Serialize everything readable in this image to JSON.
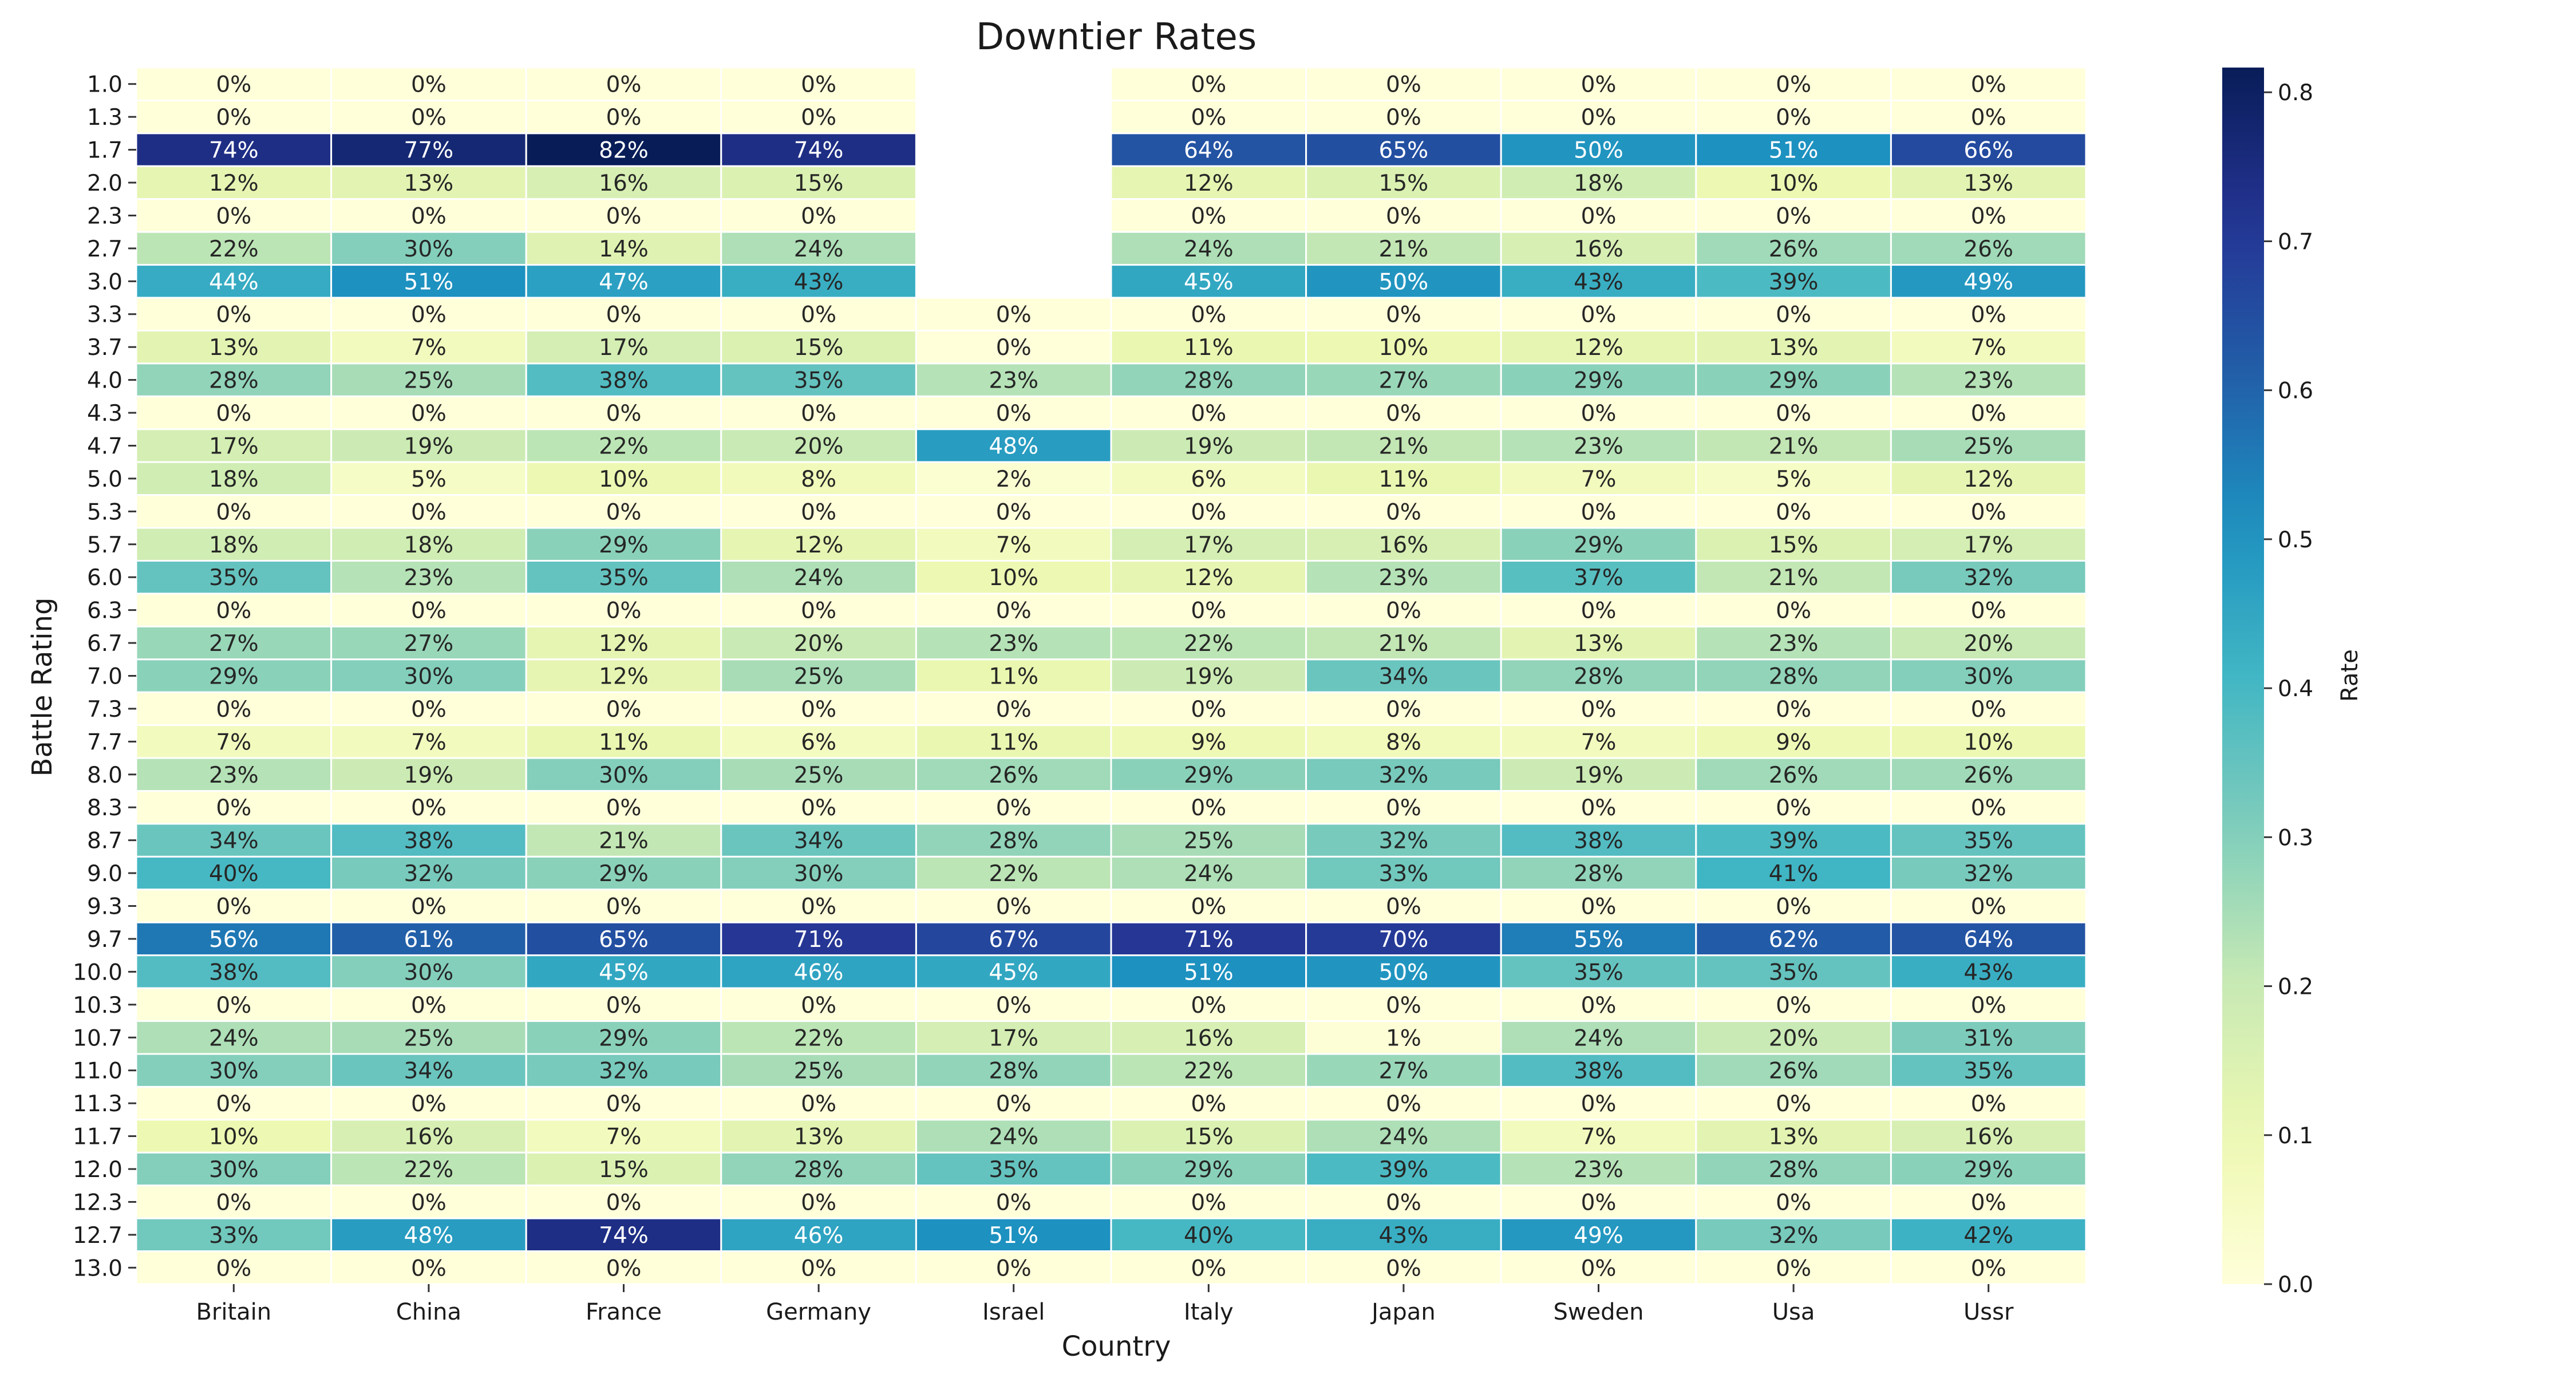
{
  "chart_data": {
    "type": "heatmap",
    "title": "Downtier Rates",
    "xlabel": "Country",
    "ylabel": "Battle Rating",
    "colorbar_label": "Rate",
    "colorbar_ticks": [
      "0.0",
      "0.1",
      "0.2",
      "0.3",
      "0.4",
      "0.5",
      "0.6",
      "0.7",
      "0.8"
    ],
    "vmin": 0.0,
    "vmax": 0.8166,
    "colormap": "YlGnBu",
    "categories_x": [
      "Britain",
      "China",
      "France",
      "Germany",
      "Israel",
      "Italy",
      "Japan",
      "Sweden",
      "Usa",
      "Ussr"
    ],
    "categories_y": [
      "1.0",
      "1.3",
      "1.7",
      "2.0",
      "2.3",
      "2.7",
      "3.0",
      "3.3",
      "3.7",
      "4.0",
      "4.3",
      "4.7",
      "5.0",
      "5.3",
      "5.7",
      "6.0",
      "6.3",
      "6.7",
      "7.0",
      "7.3",
      "7.7",
      "8.0",
      "8.3",
      "8.7",
      "9.0",
      "9.3",
      "9.7",
      "10.0",
      "10.3",
      "10.7",
      "11.0",
      "11.3",
      "11.7",
      "12.0",
      "12.3",
      "12.7",
      "13.0"
    ],
    "values": [
      [
        0.0,
        0.0,
        0.0,
        0.0,
        null,
        0.0,
        0.0,
        0.0,
        0.0,
        0.0
      ],
      [
        0.0,
        0.0,
        0.0,
        0.0,
        null,
        0.0,
        0.0,
        0.0,
        0.0,
        0.0
      ],
      [
        0.74,
        0.77,
        0.82,
        0.74,
        null,
        0.64,
        0.65,
        0.5,
        0.51,
        0.66
      ],
      [
        0.12,
        0.13,
        0.16,
        0.15,
        null,
        0.12,
        0.15,
        0.18,
        0.1,
        0.13
      ],
      [
        0.0,
        0.0,
        0.0,
        0.0,
        null,
        0.0,
        0.0,
        0.0,
        0.0,
        0.0
      ],
      [
        0.22,
        0.3,
        0.14,
        0.24,
        null,
        0.24,
        0.21,
        0.16,
        0.26,
        0.26
      ],
      [
        0.44,
        0.51,
        0.47,
        0.43,
        null,
        0.45,
        0.5,
        0.43,
        0.39,
        0.49
      ],
      [
        0.0,
        0.0,
        0.0,
        0.0,
        0.0,
        0.0,
        0.0,
        0.0,
        0.0,
        0.0
      ],
      [
        0.13,
        0.07,
        0.17,
        0.15,
        0.0,
        0.11,
        0.1,
        0.12,
        0.13,
        0.07
      ],
      [
        0.28,
        0.25,
        0.38,
        0.35,
        0.23,
        0.28,
        0.27,
        0.29,
        0.29,
        0.23
      ],
      [
        0.0,
        0.0,
        0.0,
        0.0,
        0.0,
        0.0,
        0.0,
        0.0,
        0.0,
        0.0
      ],
      [
        0.17,
        0.19,
        0.22,
        0.2,
        0.48,
        0.19,
        0.21,
        0.23,
        0.21,
        0.25
      ],
      [
        0.18,
        0.05,
        0.1,
        0.08,
        0.02,
        0.06,
        0.11,
        0.07,
        0.05,
        0.12
      ],
      [
        0.0,
        0.0,
        0.0,
        0.0,
        0.0,
        0.0,
        0.0,
        0.0,
        0.0,
        0.0
      ],
      [
        0.18,
        0.18,
        0.29,
        0.12,
        0.07,
        0.17,
        0.16,
        0.29,
        0.15,
        0.17
      ],
      [
        0.35,
        0.23,
        0.35,
        0.24,
        0.1,
        0.12,
        0.23,
        0.37,
        0.21,
        0.32
      ],
      [
        0.0,
        0.0,
        0.0,
        0.0,
        0.0,
        0.0,
        0.0,
        0.0,
        0.0,
        0.0
      ],
      [
        0.27,
        0.27,
        0.12,
        0.2,
        0.23,
        0.22,
        0.21,
        0.13,
        0.23,
        0.2
      ],
      [
        0.29,
        0.3,
        0.12,
        0.25,
        0.11,
        0.19,
        0.34,
        0.28,
        0.28,
        0.3
      ],
      [
        0.0,
        0.0,
        0.0,
        0.0,
        0.0,
        0.0,
        0.0,
        0.0,
        0.0,
        0.0
      ],
      [
        0.07,
        0.07,
        0.11,
        0.06,
        0.11,
        0.09,
        0.08,
        0.07,
        0.09,
        0.1
      ],
      [
        0.23,
        0.19,
        0.3,
        0.25,
        0.26,
        0.29,
        0.32,
        0.19,
        0.26,
        0.26
      ],
      [
        0.0,
        0.0,
        0.0,
        0.0,
        0.0,
        0.0,
        0.0,
        0.0,
        0.0,
        0.0
      ],
      [
        0.34,
        0.38,
        0.21,
        0.34,
        0.28,
        0.25,
        0.32,
        0.38,
        0.39,
        0.35
      ],
      [
        0.4,
        0.32,
        0.29,
        0.3,
        0.22,
        0.24,
        0.33,
        0.28,
        0.41,
        0.32
      ],
      [
        0.0,
        0.0,
        0.0,
        0.0,
        0.0,
        0.0,
        0.0,
        0.0,
        0.0,
        0.0
      ],
      [
        0.56,
        0.61,
        0.65,
        0.71,
        0.67,
        0.71,
        0.7,
        0.55,
        0.62,
        0.64
      ],
      [
        0.38,
        0.3,
        0.45,
        0.46,
        0.45,
        0.51,
        0.5,
        0.35,
        0.35,
        0.43
      ],
      [
        0.0,
        0.0,
        0.0,
        0.0,
        0.0,
        0.0,
        0.0,
        0.0,
        0.0,
        0.0
      ],
      [
        0.24,
        0.25,
        0.29,
        0.22,
        0.17,
        0.16,
        0.01,
        0.24,
        0.2,
        0.31
      ],
      [
        0.3,
        0.34,
        0.32,
        0.25,
        0.28,
        0.22,
        0.27,
        0.38,
        0.26,
        0.35
      ],
      [
        0.0,
        0.0,
        0.0,
        0.0,
        0.0,
        0.0,
        0.0,
        0.0,
        0.0,
        0.0
      ],
      [
        0.1,
        0.16,
        0.07,
        0.13,
        0.24,
        0.15,
        0.24,
        0.07,
        0.13,
        0.16
      ],
      [
        0.3,
        0.22,
        0.15,
        0.28,
        0.35,
        0.29,
        0.39,
        0.23,
        0.28,
        0.29
      ],
      [
        0.0,
        0.0,
        0.0,
        0.0,
        0.0,
        0.0,
        0.0,
        0.0,
        0.0,
        0.0
      ],
      [
        0.33,
        0.48,
        0.74,
        0.46,
        0.51,
        0.4,
        0.43,
        0.49,
        0.32,
        0.42
      ],
      [
        0.0,
        0.0,
        0.0,
        0.0,
        0.0,
        0.0,
        0.0,
        0.0,
        0.0,
        0.0
      ]
    ]
  }
}
